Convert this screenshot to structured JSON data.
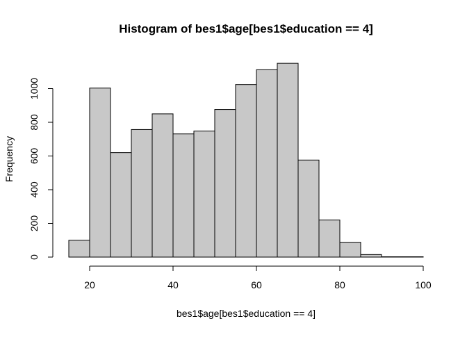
{
  "chart_data": {
    "type": "bar",
    "subtype": "histogram",
    "title": "Histogram of bes1$age[bes1$education == 4]",
    "xlabel": "bes1$age[bes1$education == 4]",
    "ylabel": "Frequency",
    "bin_width": 5,
    "bins": [
      {
        "start": 15,
        "end": 20,
        "value": 100
      },
      {
        "start": 20,
        "end": 25,
        "value": 1003
      },
      {
        "start": 25,
        "end": 30,
        "value": 620
      },
      {
        "start": 30,
        "end": 35,
        "value": 757
      },
      {
        "start": 35,
        "end": 40,
        "value": 850
      },
      {
        "start": 40,
        "end": 45,
        "value": 731
      },
      {
        "start": 45,
        "end": 50,
        "value": 748
      },
      {
        "start": 50,
        "end": 55,
        "value": 876
      },
      {
        "start": 55,
        "end": 60,
        "value": 1024
      },
      {
        "start": 60,
        "end": 65,
        "value": 1112
      },
      {
        "start": 65,
        "end": 70,
        "value": 1150
      },
      {
        "start": 70,
        "end": 75,
        "value": 576
      },
      {
        "start": 75,
        "end": 80,
        "value": 220
      },
      {
        "start": 80,
        "end": 85,
        "value": 88
      },
      {
        "start": 85,
        "end": 90,
        "value": 15
      },
      {
        "start": 90,
        "end": 95,
        "value": 2
      },
      {
        "start": 95,
        "end": 100,
        "value": 2
      }
    ],
    "x_ticks": [
      "20",
      "40",
      "60",
      "80",
      "100"
    ],
    "y_ticks": [
      "0",
      "200",
      "400",
      "600",
      "800",
      "1000"
    ],
    "xlim": [
      15,
      100
    ],
    "ylim": [
      0,
      1150
    ],
    "bar_fill": "#c8c8c8",
    "bar_stroke": "#000000",
    "grid": false,
    "legend": "none"
  }
}
